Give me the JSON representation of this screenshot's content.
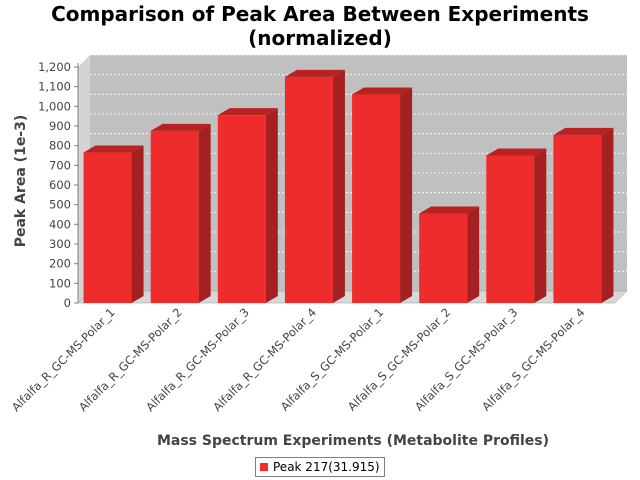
{
  "chart_data": {
    "type": "bar",
    "title": "Comparison of Peak Area Between Experiments (normalized)",
    "title_lines": [
      "Comparison of Peak Area Between Experiments",
      "(normalized)"
    ],
    "xlabel": "Mass Spectrum Experiments (Metabolite Profiles)",
    "ylabel": "Peak Area (1e-3)",
    "ylim": [
      0,
      1200
    ],
    "yticks": [
      0,
      100,
      200,
      300,
      400,
      500,
      600,
      700,
      800,
      900,
      1000,
      1100,
      1200
    ],
    "ytick_labels": [
      "0",
      "100",
      "200",
      "300",
      "400",
      "500",
      "600",
      "700",
      "800",
      "900",
      "1,000",
      "1,100",
      "1,200"
    ],
    "categories": [
      "Alfalfa_R_GC-MS-Polar_1",
      "Alfalfa_R_GC-MS-Polar_2",
      "Alfalfa_R_GC-MS-Polar_3",
      "Alfalfa_R_GC-MS-Polar_4",
      "Alfalfa_S_GC-MS-Polar_1",
      "Alfalfa_S_GC-MS-Polar_2",
      "Alfalfa_S_GC-MS-Polar_3",
      "Alfalfa_S_GC-MS-Polar_4"
    ],
    "series": [
      {
        "name": "Peak 217(31.915)",
        "color": "#ee2c2c",
        "values": [
          765,
          875,
          955,
          1150,
          1060,
          455,
          750,
          855
        ]
      }
    ],
    "grid": true,
    "legend_position": "bottom",
    "plot_background": "#c0c0c0"
  }
}
